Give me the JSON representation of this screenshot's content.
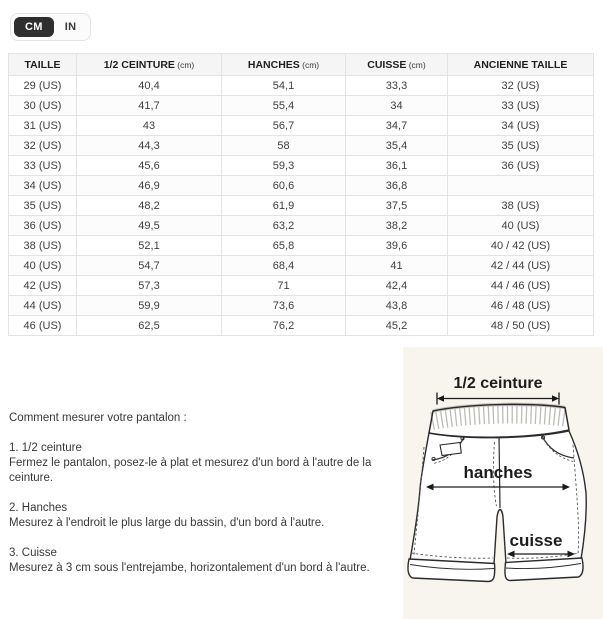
{
  "units_toggle": {
    "cm_label": "CM",
    "in_label": "IN",
    "selected": "CM"
  },
  "table": {
    "headers": [
      {
        "label": "TAILLE",
        "unit": ""
      },
      {
        "label": "1/2 CEINTURE",
        "unit": "(cm)"
      },
      {
        "label": "HANCHES",
        "unit": "(cm)"
      },
      {
        "label": "CUISSE",
        "unit": "(cm)"
      },
      {
        "label": "ANCIENNE TAILLE",
        "unit": ""
      }
    ],
    "rows": [
      [
        "29 (US)",
        "40,4",
        "54,1",
        "33,3",
        "32 (US)"
      ],
      [
        "30 (US)",
        "41,7",
        "55,4",
        "34",
        "33 (US)"
      ],
      [
        "31 (US)",
        "43",
        "56,7",
        "34,7",
        "34 (US)"
      ],
      [
        "32 (US)",
        "44,3",
        "58",
        "35,4",
        "35 (US)"
      ],
      [
        "33 (US)",
        "45,6",
        "59,3",
        "36,1",
        "36 (US)"
      ],
      [
        "34 (US)",
        "46,9",
        "60,6",
        "36,8",
        ""
      ],
      [
        "35 (US)",
        "48,2",
        "61,9",
        "37,5",
        "38 (US)"
      ],
      [
        "36 (US)",
        "49,5",
        "63,2",
        "38,2",
        "40 (US)"
      ],
      [
        "38 (US)",
        "52,1",
        "65,8",
        "39,6",
        "40 / 42 (US)"
      ],
      [
        "40 (US)",
        "54,7",
        "68,4",
        "41",
        "42 / 44 (US)"
      ],
      [
        "42 (US)",
        "57,3",
        "71",
        "42,4",
        "44 / 46 (US)"
      ],
      [
        "44 (US)",
        "59,9",
        "73,6",
        "43,8",
        "46 / 48 (US)"
      ],
      [
        "46 (US)",
        "62,5",
        "76,2",
        "45,2",
        "48 / 50 (US)"
      ]
    ]
  },
  "instructions": {
    "title": "Comment mesurer votre pantalon :",
    "steps": [
      {
        "heading": "1. 1/2 ceinture",
        "body": "Fermez le pantalon, posez-le à plat et mesurez d'un bord à l'autre de la ceinture."
      },
      {
        "heading": "2. Hanches",
        "body": "Mesurez à l'endroit le plus large du bassin, d'un bord à l'autre."
      },
      {
        "heading": "3. Cuisse",
        "body": "Mesurez à 3 cm sous l'entrejambe, horizontalement d'un bord à l'autre."
      }
    ]
  },
  "diagram": {
    "labels": {
      "waist": "1/2 ceinture",
      "hips": "hanches",
      "thigh": "cuisse"
    }
  },
  "colors": {
    "accent_dark": "#2e2e2e",
    "table_header_bg": "#f5f5f5",
    "table_border": "#e3e3e3",
    "diagram_bg": "#f8f5ee",
    "text": "#383838"
  }
}
